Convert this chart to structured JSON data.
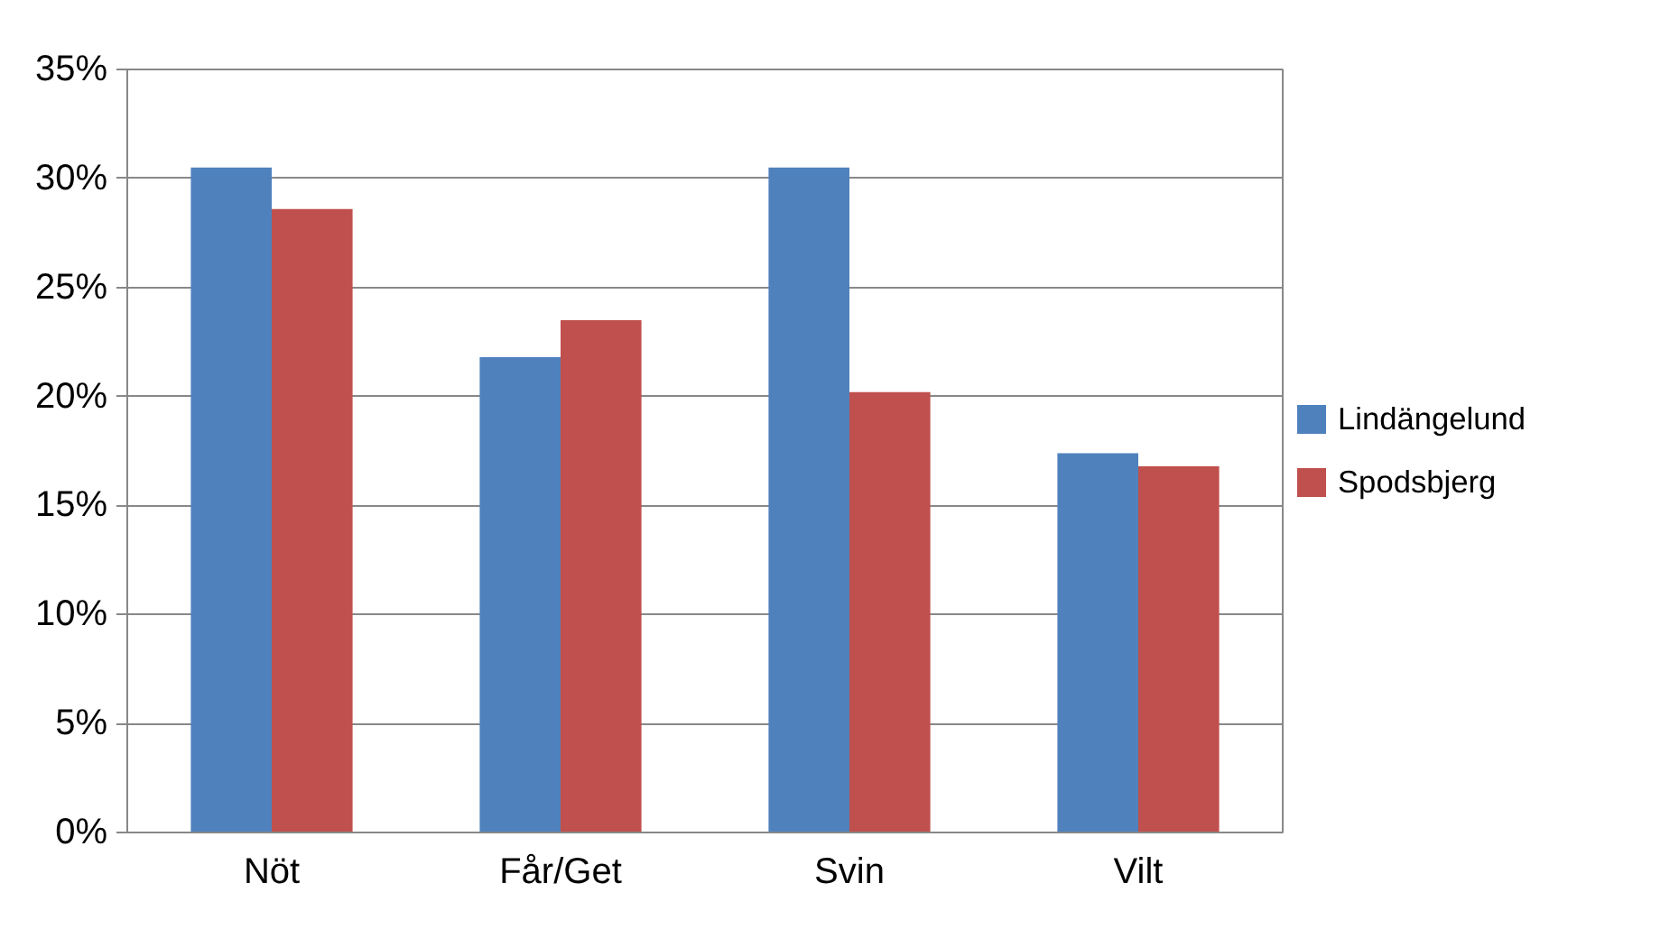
{
  "chart_data": {
    "type": "bar",
    "categories": [
      "Nöt",
      "Får/Get",
      "Svin",
      "Vilt"
    ],
    "series": [
      {
        "name": "Lindängelund",
        "color": "#4f81bd",
        "values": [
          30.5,
          21.8,
          30.5,
          17.4
        ]
      },
      {
        "name": "Spodsbjerg",
        "color": "#c0504d",
        "values": [
          28.6,
          23.5,
          20.2,
          16.8
        ]
      }
    ],
    "ylim": [
      0,
      35
    ],
    "yticks": [
      {
        "value": 0,
        "label": "0%"
      },
      {
        "value": 5,
        "label": "5%"
      },
      {
        "value": 10,
        "label": "10%"
      },
      {
        "value": 15,
        "label": "15%"
      },
      {
        "value": 20,
        "label": "20%"
      },
      {
        "value": 25,
        "label": "25%"
      },
      {
        "value": 30,
        "label": "30%"
      },
      {
        "value": 35,
        "label": "35%"
      }
    ],
    "grid": "y",
    "legend": "right"
  }
}
